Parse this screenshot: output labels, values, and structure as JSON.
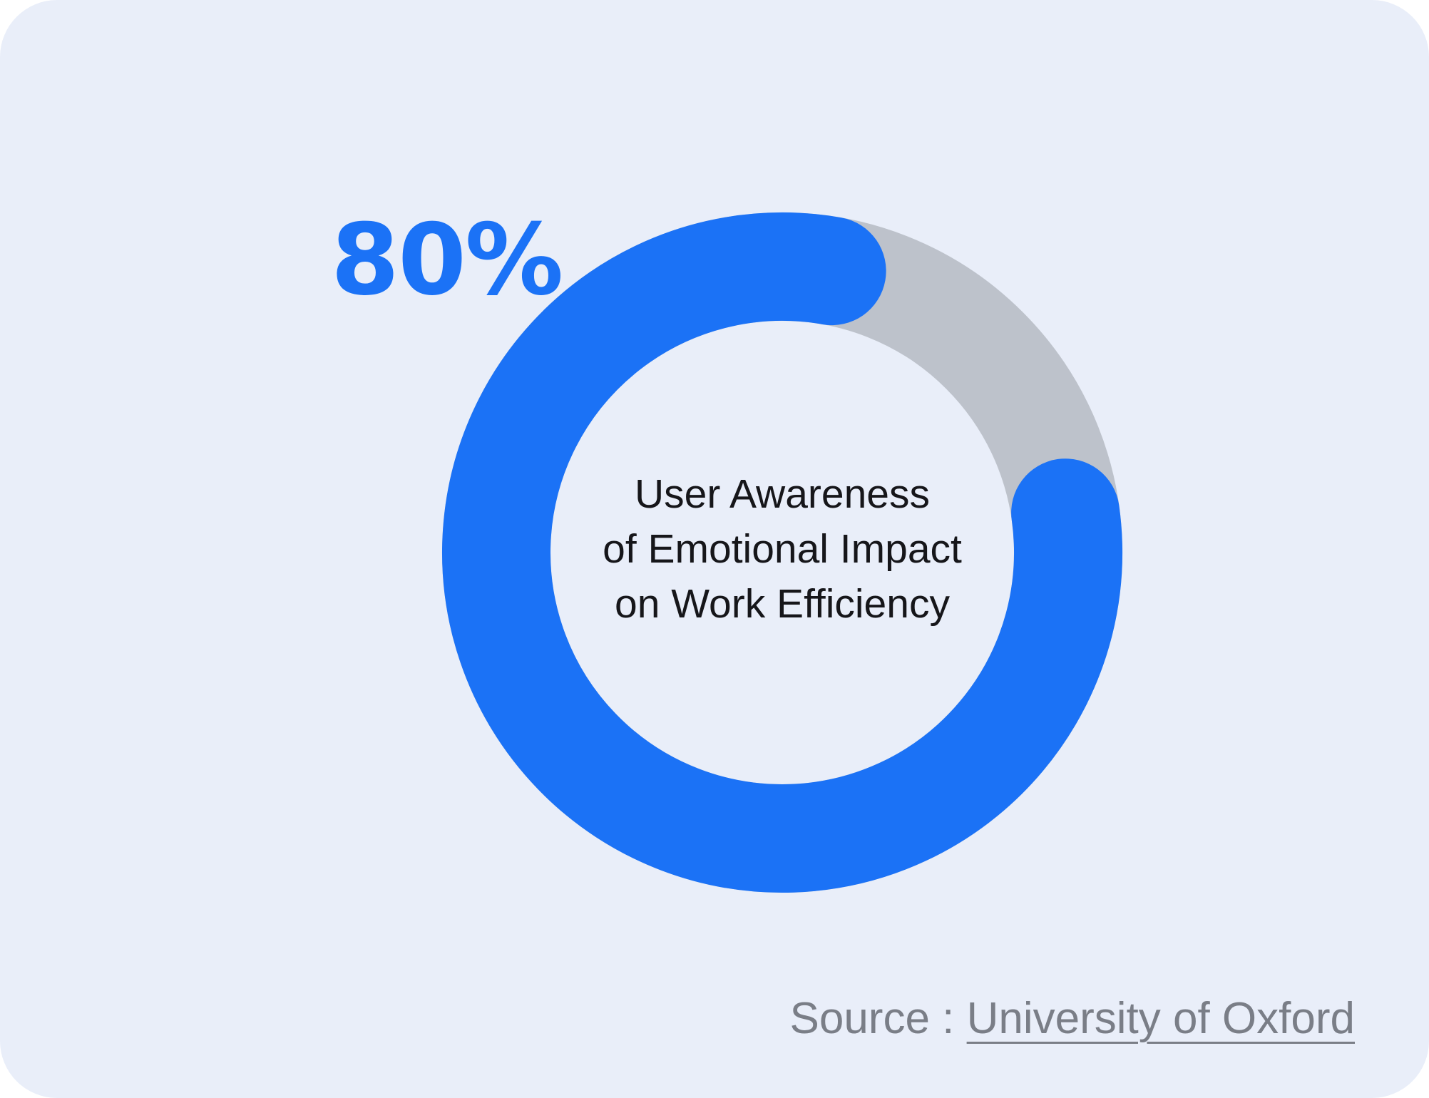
{
  "chart_data": {
    "type": "pie",
    "variant": "donut",
    "value_percent": 80,
    "remainder_percent": 20,
    "value_label": "80%",
    "center_label_lines": [
      "User Awareness",
      "of Emotional Impact",
      "on Work Efficiency"
    ],
    "colors": {
      "value": "#1b72f6",
      "remainder": "#bdc2cb",
      "background": "#e9eef9"
    }
  },
  "source": {
    "prefix": "Source : ",
    "link_text": "University of Oxford"
  }
}
